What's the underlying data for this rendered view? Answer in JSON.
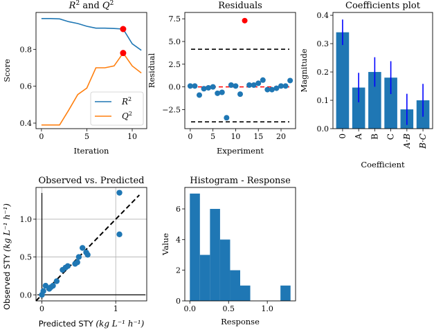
{
  "figure": {
    "colors": {
      "blue": "#1f77b4",
      "orange": "#ff7f0e",
      "red": "#ff0000",
      "errbar": "#0000ff",
      "grid": "#b0b0b0"
    }
  },
  "chart_data": [
    {
      "id": "r2q2",
      "type": "line",
      "title_parts": [
        "R",
        "2",
        " and ",
        "Q",
        "2"
      ],
      "xlabel": "Iteration",
      "ylabel": "Score",
      "xlim": [
        -0.6,
        11.6
      ],
      "ylim": [
        0.37,
        1.0
      ],
      "xticks": [
        0,
        5,
        10
      ],
      "yticks": [
        0.4,
        0.6,
        0.8
      ],
      "series": [
        {
          "name": "R",
          "sup": "2",
          "x": [
            0,
            1,
            2,
            3,
            4,
            5,
            6,
            7,
            8,
            9,
            10,
            11
          ],
          "y": [
            0.967,
            0.967,
            0.965,
            0.95,
            0.94,
            0.925,
            0.915,
            0.915,
            0.913,
            0.91,
            0.83,
            0.795
          ],
          "color": "#1f77b4"
        },
        {
          "name": "Q",
          "sup": "2",
          "x": [
            0,
            1,
            2,
            3,
            4,
            5,
            6,
            7,
            8,
            9,
            10,
            11
          ],
          "y": [
            0.39,
            0.39,
            0.39,
            0.47,
            0.555,
            0.59,
            0.7,
            0.7,
            0.71,
            0.78,
            0.71,
            0.672
          ],
          "color": "#ff7f0e"
        }
      ],
      "highlight": [
        {
          "x": 9,
          "y": 0.91
        },
        {
          "x": 9,
          "y": 0.78
        }
      ],
      "legend": "lower-right"
    },
    {
      "id": "residuals",
      "type": "scatter",
      "title": "Residuals",
      "xlabel": "Experiment",
      "ylabel": "Residual",
      "xlim": [
        -1.2,
        23.2
      ],
      "ylim": [
        -4.6,
        8.2
      ],
      "xticks": [
        0,
        5,
        10,
        15,
        20
      ],
      "yticks": [
        -2.5,
        0.0,
        2.5,
        5.0,
        7.5
      ],
      "ytick_labels": [
        "−2.5",
        "0.0",
        "2.5",
        "5.0",
        "7.5"
      ],
      "x": [
        0,
        1,
        2,
        3,
        4,
        5,
        6,
        7,
        8,
        9,
        10,
        11,
        12,
        13,
        14,
        15,
        16,
        17,
        18,
        19,
        20,
        21,
        22
      ],
      "y": [
        0.1,
        0.1,
        -0.9,
        -0.2,
        -0.1,
        0.0,
        -0.7,
        -0.6,
        -3.4,
        0.2,
        0.1,
        -0.8,
        7.3,
        0.2,
        0.2,
        0.4,
        0.75,
        -0.3,
        -0.3,
        -0.15,
        0.1,
        0.1,
        0.7
      ],
      "outlier_index": 12,
      "hlines": [
        {
          "y": 4.15,
          "style": "dashed",
          "color": "#000000"
        },
        {
          "y": -3.85,
          "style": "dashed",
          "color": "#000000"
        },
        {
          "y": 0.0,
          "style": "dashed",
          "color": "#ff0000"
        }
      ]
    },
    {
      "id": "coefs",
      "type": "bar",
      "title": "Coefficients plot",
      "xlabel": "Coefficient",
      "ylabel": "Magnitude",
      "ylim": [
        0,
        0.41
      ],
      "yticks": [
        0.0,
        0.1,
        0.2,
        0.3,
        0.4
      ],
      "categories": [
        "0",
        "A",
        "B",
        "C",
        "A·B",
        "B·C"
      ],
      "values": [
        0.34,
        0.145,
        0.2,
        0.18,
        0.068,
        0.1
      ],
      "errors": [
        0.045,
        0.052,
        0.052,
        0.058,
        0.055,
        0.058
      ]
    },
    {
      "id": "obs_pred",
      "type": "scatter",
      "title": "Observed vs.  Predicted",
      "xlabel_prefix": "Predicted STY ",
      "ylabel_prefix": "Observed STY ",
      "unit_expr": "(kg L⁻¹ h⁻¹)",
      "xlim": [
        -0.08,
        1.42
      ],
      "ylim": [
        -0.08,
        1.42
      ],
      "xticks": [
        0,
        1
      ],
      "yticks": [
        0.0,
        0.5,
        1.0
      ],
      "grid": true,
      "x": [
        0.0,
        0.02,
        0.05,
        0.1,
        0.12,
        0.15,
        0.2,
        0.28,
        0.32,
        0.35,
        0.45,
        0.48,
        0.5,
        0.55,
        0.6,
        0.62,
        1.05,
        1.05
      ],
      "y": [
        0.0,
        0.05,
        0.12,
        0.08,
        0.1,
        0.12,
        0.18,
        0.33,
        0.36,
        0.38,
        0.41,
        0.43,
        0.5,
        0.62,
        0.56,
        0.53,
        1.35,
        0.8
      ],
      "diagonal": [
        [
          -0.08,
          -0.08
        ],
        [
          1.42,
          1.42
        ]
      ]
    },
    {
      "id": "hist",
      "type": "bar",
      "title": "Histogram - Response",
      "xlabel": "Response",
      "ylabel": "Value",
      "xlim": [
        -0.065,
        1.365
      ],
      "ylim": [
        0,
        7.4
      ],
      "xticks": [
        0.0,
        0.5,
        1.0
      ],
      "yticks": [
        0,
        2,
        4,
        6
      ],
      "bin_edges": [
        0.0,
        0.13,
        0.26,
        0.39,
        0.52,
        0.65,
        0.78,
        0.91,
        1.04,
        1.17,
        1.3
      ],
      "counts": [
        7,
        3,
        6,
        4,
        2,
        1,
        0,
        0,
        0,
        1
      ]
    }
  ]
}
